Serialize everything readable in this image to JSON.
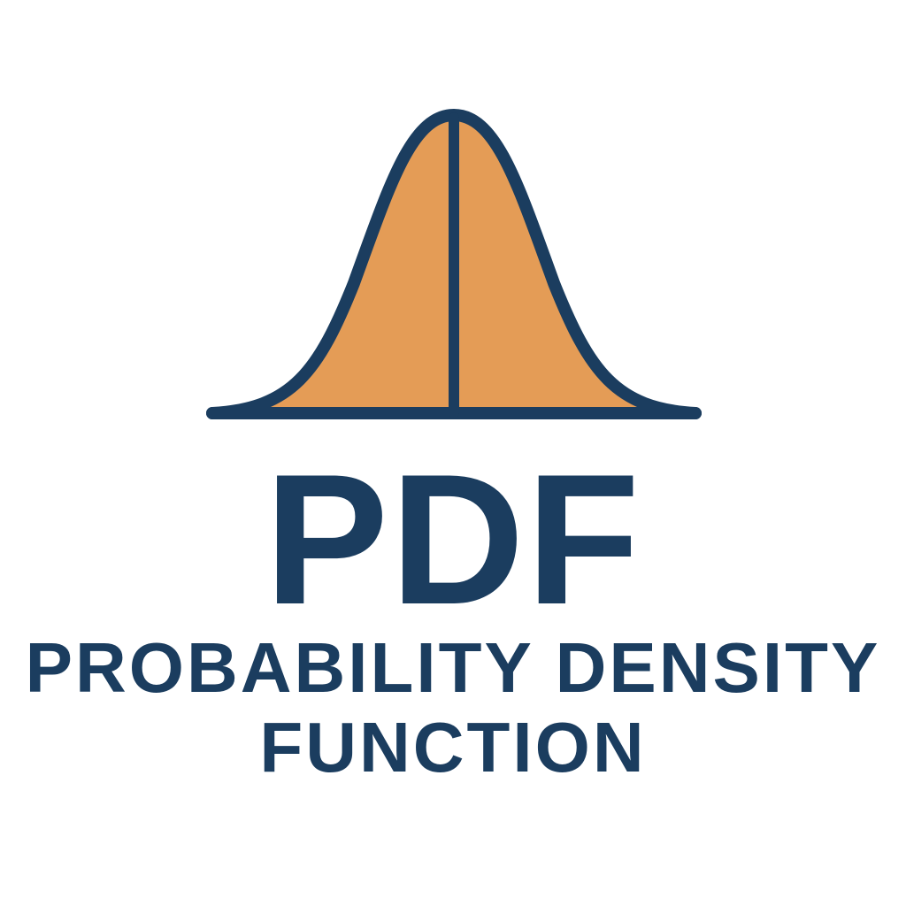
{
  "colors": {
    "navy": "#1b3d5f",
    "fill": "#e49c56",
    "background": "#ffffff"
  },
  "logo": {
    "abbreviation": "PDF",
    "full_name_line1": "PROBABILITY DENSITY",
    "full_name_line2": "FUNCTION"
  },
  "icon": {
    "name": "bell-curve-icon"
  }
}
